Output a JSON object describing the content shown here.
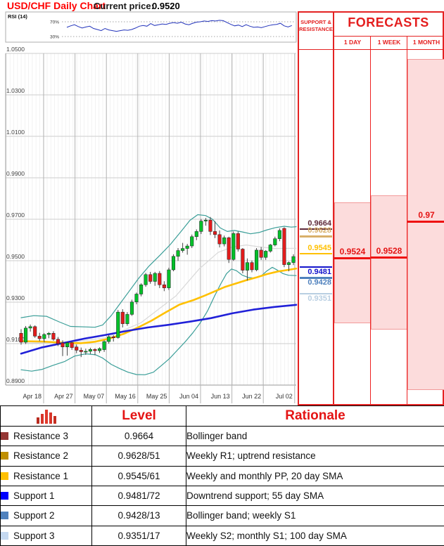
{
  "title": "USD/CHF Daily Chart",
  "price": {
    "label": "Current price:",
    "value": "0.9520"
  },
  "colors": {
    "accent_red": "#e41e1e",
    "pink_fill": "#fcdcdc",
    "salmon_border": "#f29a9a",
    "candle_up": "#00c029",
    "candle_down": "#e21c1c",
    "bollinger": "#3a9e98",
    "sma_yellow": "#ffc000",
    "sma_blue": "#2020d8",
    "sma_gray": "#d9d9d9",
    "rsi_line": "#2233bb"
  },
  "sr_panel": {
    "header": "SUPPORT & RESISTANCE",
    "levels": [
      {
        "value": "0.9664",
        "price": 0.9664,
        "color": "#5f2a3a",
        "side": "above"
      },
      {
        "value": "0.9628",
        "price": 0.9628,
        "color": "#d8b06a",
        "side": "above"
      },
      {
        "value": "0.9545",
        "price": 0.9545,
        "color": "#ffc000",
        "side": "above"
      },
      {
        "value": "0.9481",
        "price": 0.9481,
        "color": "#1414cc",
        "side": "below"
      },
      {
        "value": "0.9428",
        "price": 0.9428,
        "color": "#4f81bd",
        "side": "below"
      },
      {
        "value": "0.9351",
        "price": 0.9351,
        "color": "#b9cfe2",
        "side": "below"
      }
    ]
  },
  "forecasts": {
    "title": "FORECASTS",
    "columns": [
      {
        "label": "1 DAY",
        "value": "0.9524",
        "price": 0.9524,
        "range_high": 0.9788,
        "range_low": 0.9205
      },
      {
        "label": "1 WEEK",
        "value": "0.9528",
        "price": 0.9528,
        "range_high": 0.9822,
        "range_low": 0.9175
      },
      {
        "label": "1 MONTH",
        "value": "0.97",
        "price": 0.97,
        "range_high": 1.048,
        "range_low": 0.8883
      }
    ]
  },
  "table": {
    "headers": {
      "icon": "histogram-icon",
      "level": "Level",
      "rationale": "Rationale"
    },
    "rows": [
      {
        "name": "Resistance 3",
        "swatch": "#943634",
        "level": "0.9664",
        "rationale": "Bollinger band"
      },
      {
        "name": "Resistance 2",
        "swatch": "#bf8f00",
        "level": "0.9628/51",
        "rationale": "Weekly R1; uptrend resistance"
      },
      {
        "name": "Resistance 1",
        "swatch": "#ffc000",
        "level": "0.9545/61",
        "rationale": "Weekly and monthly PP, 20 day SMA"
      },
      {
        "name": "Support 1",
        "swatch": "#0000ff",
        "level": "0.9481/72",
        "rationale": "Downtrend support; 55 day SMA"
      },
      {
        "name": "Support 2",
        "swatch": "#4f81bd",
        "level": "0.9428/13",
        "rationale": "Bollinger band; weekly S1"
      },
      {
        "name": "Support 3",
        "swatch": "#c5d9f1",
        "level": "0.9351/17",
        "rationale": "Weekly S2; monthly S1; 100 day SMA"
      }
    ]
  },
  "chart_data": {
    "type": "candlestick",
    "title": "USD/CHF Daily Chart",
    "current_price": 0.952,
    "x_labels": [
      "Apr 18",
      "Apr 27",
      "May 07",
      "May 16",
      "May 25",
      "Jun 04",
      "Jun 13",
      "Jun 22",
      "Jul 02"
    ],
    "y_ticks": [
      0.89,
      0.91,
      0.93,
      0.95,
      0.97,
      0.99,
      1.01,
      1.03,
      1.05
    ],
    "y_tick_labels": [
      "0.8900",
      "0.9100",
      "0.9300",
      "0.9500",
      "0.9700",
      "0.9900",
      "1.0100",
      "1.0300",
      "1.0500"
    ],
    "ylim": [
      0.886,
      1.052
    ],
    "candles_ohlc": [
      [
        0.915,
        0.917,
        0.9095,
        0.9107
      ],
      [
        0.9107,
        0.9185,
        0.9098,
        0.9175
      ],
      [
        0.9175,
        0.9192,
        0.9158,
        0.9182
      ],
      [
        0.9182,
        0.9188,
        0.9128,
        0.9136
      ],
      [
        0.9136,
        0.9152,
        0.9112,
        0.9124
      ],
      [
        0.9124,
        0.915,
        0.9106,
        0.9144
      ],
      [
        0.9144,
        0.9156,
        0.9126,
        0.915
      ],
      [
        0.915,
        0.916,
        0.9114,
        0.9121
      ],
      [
        0.9121,
        0.9132,
        0.9088,
        0.91
      ],
      [
        0.9103,
        0.9116,
        0.904,
        0.9084
      ],
      [
        0.9084,
        0.911,
        0.9042,
        0.9104
      ],
      [
        0.9104,
        0.911,
        0.907,
        0.9081
      ],
      [
        0.9084,
        0.9096,
        0.9054,
        0.9068
      ],
      [
        0.9068,
        0.9081,
        0.9035,
        0.9061
      ],
      [
        0.9061,
        0.9076,
        0.9046,
        0.9063
      ],
      [
        0.9063,
        0.908,
        0.905,
        0.9072
      ],
      [
        0.9072,
        0.9078,
        0.9044,
        0.9066
      ],
      [
        0.9066,
        0.9082,
        0.9055,
        0.9076
      ],
      [
        0.9071,
        0.9116,
        0.906,
        0.911
      ],
      [
        0.911,
        0.9142,
        0.91,
        0.9133
      ],
      [
        0.9133,
        0.9141,
        0.911,
        0.9128
      ],
      [
        0.9129,
        0.9262,
        0.9124,
        0.9252
      ],
      [
        0.9252,
        0.9266,
        0.9178,
        0.9196
      ],
      [
        0.9196,
        0.9252,
        0.9186,
        0.9241
      ],
      [
        0.9241,
        0.9312,
        0.9234,
        0.9301
      ],
      [
        0.9301,
        0.9346,
        0.929,
        0.9339
      ],
      [
        0.9339,
        0.9391,
        0.9328,
        0.9384
      ],
      [
        0.9384,
        0.9441,
        0.9374,
        0.9433
      ],
      [
        0.9433,
        0.9446,
        0.9389,
        0.94
      ],
      [
        0.94,
        0.9446,
        0.9379,
        0.9439
      ],
      [
        0.9439,
        0.945,
        0.9368,
        0.9384
      ],
      [
        0.9384,
        0.9401,
        0.9353,
        0.9369
      ],
      [
        0.9369,
        0.9466,
        0.9359,
        0.9456
      ],
      [
        0.9456,
        0.9531,
        0.9449,
        0.9521
      ],
      [
        0.9521,
        0.9561,
        0.9499,
        0.9549
      ],
      [
        0.9549,
        0.9586,
        0.9539,
        0.9559
      ],
      [
        0.9559,
        0.9581,
        0.9529,
        0.9571
      ],
      [
        0.9571,
        0.9626,
        0.9561,
        0.9616
      ],
      [
        0.9616,
        0.9651,
        0.9599,
        0.9641
      ],
      [
        0.9641,
        0.9701,
        0.9629,
        0.9691
      ],
      [
        0.9691,
        0.9706,
        0.9669,
        0.9696
      ],
      [
        0.9696,
        0.9711,
        0.9624,
        0.9641
      ],
      [
        0.9641,
        0.9691,
        0.9609,
        0.9626
      ],
      [
        0.9626,
        0.9646,
        0.9564,
        0.9581
      ],
      [
        0.9581,
        0.9621,
        0.9569,
        0.9611
      ],
      [
        0.9611,
        0.9616,
        0.9489,
        0.9506
      ],
      [
        0.9506,
        0.9641,
        0.9499,
        0.9631
      ],
      [
        0.9631,
        0.9641,
        0.9544,
        0.9556
      ],
      [
        0.9556,
        0.9561,
        0.9439,
        0.9454
      ],
      [
        0.9454,
        0.9511,
        0.9404,
        0.9491
      ],
      [
        0.9491,
        0.9501,
        0.9444,
        0.9456
      ],
      [
        0.9456,
        0.9561,
        0.9449,
        0.9551
      ],
      [
        0.9551,
        0.9566,
        0.9504,
        0.9516
      ],
      [
        0.9516,
        0.9551,
        0.9504,
        0.9546
      ],
      [
        0.9546,
        0.9581,
        0.9539,
        0.9576
      ],
      [
        0.9576,
        0.9616,
        0.9569,
        0.9606
      ],
      [
        0.9606,
        0.9656,
        0.9594,
        0.9646
      ],
      [
        0.9656,
        0.9661,
        0.9469,
        0.9481
      ],
      [
        0.9481,
        0.9496,
        0.9449,
        0.9491
      ],
      [
        0.9491,
        0.9531,
        0.9479,
        0.952
      ]
    ],
    "bollinger_upper": [
      [
        30,
        0.9225
      ],
      [
        48,
        0.9235
      ],
      [
        66,
        0.9232
      ],
      [
        84,
        0.9205
      ],
      [
        100,
        0.9183
      ],
      [
        135,
        0.9179
      ],
      [
        146,
        0.919
      ],
      [
        158,
        0.9235
      ],
      [
        170,
        0.929
      ],
      [
        183,
        0.935
      ],
      [
        197,
        0.9415
      ],
      [
        212,
        0.9475
      ],
      [
        227,
        0.9525
      ],
      [
        242,
        0.9578
      ],
      [
        257,
        0.964
      ],
      [
        270,
        0.9695
      ],
      [
        281,
        0.9722
      ],
      [
        292,
        0.9718
      ],
      [
        302,
        0.97
      ],
      [
        313,
        0.9658
      ],
      [
        323,
        0.9641
      ],
      [
        333,
        0.9646
      ],
      [
        344,
        0.9639
      ],
      [
        356,
        0.963
      ],
      [
        368,
        0.9636
      ],
      [
        380,
        0.9649
      ],
      [
        392,
        0.966
      ],
      [
        404,
        0.9666
      ],
      [
        414,
        0.9662
      ],
      [
        421,
        0.9664
      ]
    ],
    "bollinger_lower": [
      [
        30,
        0.8974
      ],
      [
        45,
        0.8967
      ],
      [
        60,
        0.8976
      ],
      [
        76,
        0.8996
      ],
      [
        92,
        0.9014
      ],
      [
        106,
        0.904
      ],
      [
        122,
        0.9051
      ],
      [
        136,
        0.9046
      ],
      [
        146,
        0.903
      ],
      [
        158,
        0.9
      ],
      [
        170,
        0.898
      ],
      [
        182,
        0.8962
      ],
      [
        194,
        0.8951
      ],
      [
        206,
        0.895
      ],
      [
        218,
        0.8962
      ],
      [
        230,
        0.8996
      ],
      [
        241,
        0.9028
      ],
      [
        252,
        0.9068
      ],
      [
        263,
        0.9108
      ],
      [
        274,
        0.9152
      ],
      [
        285,
        0.9202
      ],
      [
        295,
        0.9258
      ],
      [
        305,
        0.933
      ],
      [
        314,
        0.939
      ],
      [
        322,
        0.9438
      ],
      [
        329,
        0.946
      ],
      [
        336,
        0.9452
      ],
      [
        344,
        0.9431
      ],
      [
        353,
        0.9419
      ],
      [
        362,
        0.9416
      ],
      [
        371,
        0.9426
      ],
      [
        379,
        0.945
      ],
      [
        387,
        0.9468
      ],
      [
        394,
        0.9455
      ],
      [
        402,
        0.9438
      ],
      [
        410,
        0.943
      ],
      [
        421,
        0.9428
      ]
    ],
    "sma20_gray": [
      [
        30,
        0.9102
      ],
      [
        105,
        0.9108
      ],
      [
        150,
        0.9128
      ],
      [
        200,
        0.92
      ],
      [
        250,
        0.933
      ],
      [
        283,
        0.946
      ],
      [
        310,
        0.954
      ],
      [
        330,
        0.9566
      ],
      [
        350,
        0.9576
      ],
      [
        370,
        0.9566
      ],
      [
        390,
        0.9559
      ],
      [
        421,
        0.956
      ]
    ],
    "sma_yellow": [
      [
        30,
        0.9112
      ],
      [
        60,
        0.911
      ],
      [
        90,
        0.9104
      ],
      [
        115,
        0.9102
      ],
      [
        135,
        0.9109
      ],
      [
        155,
        0.9124
      ],
      [
        175,
        0.9146
      ],
      [
        195,
        0.9176
      ],
      [
        215,
        0.921
      ],
      [
        235,
        0.925
      ],
      [
        255,
        0.9288
      ],
      [
        275,
        0.931
      ],
      [
        290,
        0.933
      ],
      [
        305,
        0.9352
      ],
      [
        320,
        0.9374
      ],
      [
        335,
        0.939
      ],
      [
        350,
        0.9406
      ],
      [
        365,
        0.942
      ],
      [
        380,
        0.9436
      ],
      [
        395,
        0.9448
      ],
      [
        410,
        0.9456
      ],
      [
        421,
        0.9462
      ]
    ],
    "sma55_blue": [
      [
        30,
        0.9052
      ],
      [
        60,
        0.9082
      ],
      [
        90,
        0.9103
      ],
      [
        120,
        0.9124
      ],
      [
        150,
        0.9142
      ],
      [
        180,
        0.9161
      ],
      [
        210,
        0.9178
      ],
      [
        240,
        0.9191
      ],
      [
        270,
        0.9206
      ],
      [
        300,
        0.9223
      ],
      [
        330,
        0.9246
      ],
      [
        360,
        0.9264
      ],
      [
        390,
        0.9277
      ],
      [
        421,
        0.9287
      ]
    ],
    "rsi": {
      "label": "RSI (14)",
      "upper_label": "70%",
      "lower_label": "30%",
      "values": [
        55,
        59,
        62,
        57,
        53,
        56,
        58,
        52,
        49,
        46,
        52,
        48,
        46,
        44,
        46,
        48,
        47,
        49,
        53,
        58,
        60,
        58,
        65,
        60,
        62,
        64,
        63,
        66,
        68,
        66,
        69,
        64,
        62,
        66,
        69,
        70,
        72,
        71,
        73,
        72,
        74,
        73,
        68,
        63,
        59,
        61,
        57,
        62,
        58,
        55,
        56,
        54,
        57,
        60,
        62,
        63,
        66,
        59,
        56,
        60
      ]
    }
  }
}
